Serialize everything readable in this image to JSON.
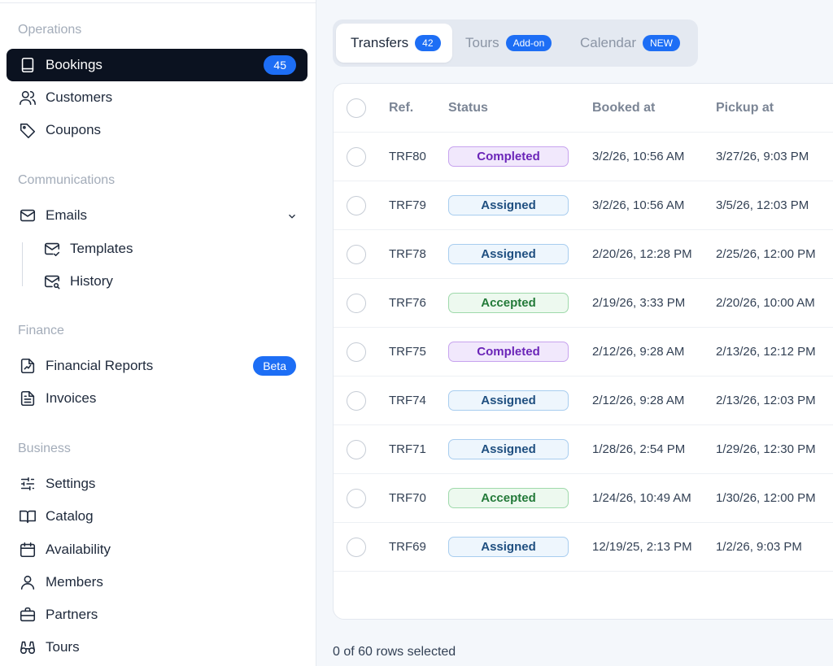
{
  "sidebar": {
    "sections": {
      "operations": "Operations",
      "communications": "Communications",
      "finance": "Finance",
      "business": "Business"
    },
    "items": {
      "bookings": {
        "label": "Bookings",
        "badge": "45",
        "icon": "book-icon"
      },
      "customers": {
        "label": "Customers",
        "icon": "users-icon"
      },
      "coupons": {
        "label": "Coupons",
        "icon": "tag-icon"
      },
      "emails": {
        "label": "Emails",
        "icon": "mail-icon"
      },
      "templates": {
        "label": "Templates",
        "icon": "mail-check-icon"
      },
      "history": {
        "label": "History",
        "icon": "mail-search-icon"
      },
      "financial_reports": {
        "label": "Financial Reports",
        "badge": "Beta",
        "icon": "chart-file-icon"
      },
      "invoices": {
        "label": "Invoices",
        "icon": "file-text-icon"
      },
      "settings": {
        "label": "Settings",
        "icon": "sliders-icon"
      },
      "catalog": {
        "label": "Catalog",
        "icon": "open-book-icon"
      },
      "availability": {
        "label": "Availability",
        "icon": "calendar-icon"
      },
      "members": {
        "label": "Members",
        "icon": "user-icon"
      },
      "partners": {
        "label": "Partners",
        "icon": "briefcase-icon"
      },
      "tours": {
        "label": "Tours",
        "icon": "binoculars-icon"
      }
    }
  },
  "tabs": [
    {
      "label": "Transfers",
      "badge": "42"
    },
    {
      "label": "Tours",
      "badge": "Add-on"
    },
    {
      "label": "Calendar",
      "badge": "NEW"
    }
  ],
  "table": {
    "columns": [
      "Ref.",
      "Status",
      "Booked at",
      "Pickup at"
    ],
    "rows": [
      {
        "ref": "TRF80",
        "status": "Completed",
        "booked": "3/2/26, 10:56 AM",
        "pickup": "3/27/26, 9:03 PM"
      },
      {
        "ref": "TRF79",
        "status": "Assigned",
        "booked": "3/2/26, 10:56 AM",
        "pickup": "3/5/26, 12:03 PM"
      },
      {
        "ref": "TRF78",
        "status": "Assigned",
        "booked": "2/20/26, 12:28 PM",
        "pickup": "2/25/26, 12:00 PM"
      },
      {
        "ref": "TRF76",
        "status": "Accepted",
        "booked": "2/19/26, 3:33 PM",
        "pickup": "2/20/26, 10:00 AM"
      },
      {
        "ref": "TRF75",
        "status": "Completed",
        "booked": "2/12/26, 9:28 AM",
        "pickup": "2/13/26, 12:12 PM"
      },
      {
        "ref": "TRF74",
        "status": "Assigned",
        "booked": "2/12/26, 9:28 AM",
        "pickup": "2/13/26, 12:03 PM"
      },
      {
        "ref": "TRF71",
        "status": "Assigned",
        "booked": "1/28/26, 2:54 PM",
        "pickup": "1/29/26, 12:30 PM"
      },
      {
        "ref": "TRF70",
        "status": "Accepted",
        "booked": "1/24/26, 10:49 AM",
        "pickup": "1/30/26, 12:00 PM"
      },
      {
        "ref": "TRF69",
        "status": "Assigned",
        "booked": "12/19/25, 2:13 PM",
        "pickup": "1/2/26, 9:03 PM"
      }
    ]
  },
  "status_colors": {
    "Completed": {
      "bg": "#f1e8fc",
      "border": "#c7a3ee",
      "text": "#6b25b8"
    },
    "Assigned": {
      "bg": "#eef6fd",
      "border": "#a8cdef",
      "text": "#1f4f80"
    },
    "Accepted": {
      "bg": "#edf9ef",
      "border": "#9fd9ab",
      "text": "#237a39"
    }
  },
  "footer": {
    "selection": "0 of 60 rows selected"
  }
}
